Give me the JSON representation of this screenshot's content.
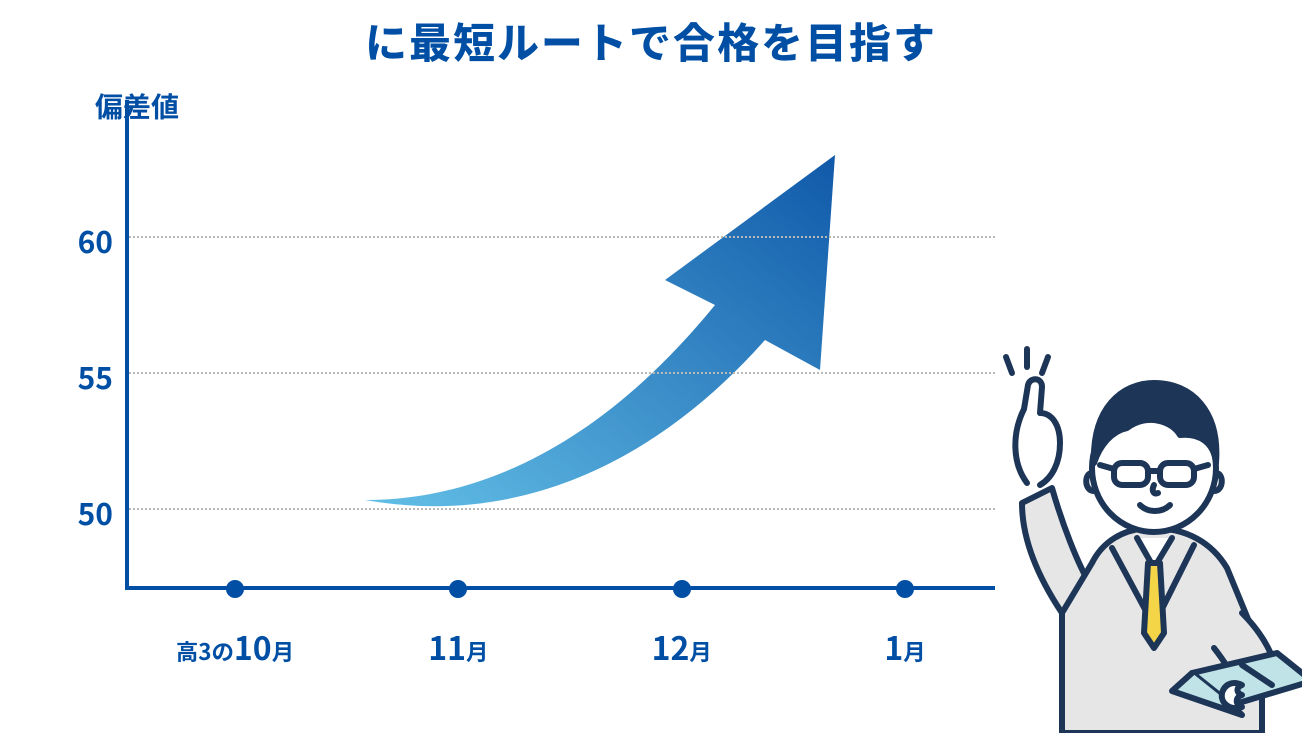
{
  "title": {
    "text": "に最短ルートで合格を目指す",
    "fontsize": 42,
    "color": "#004fa5"
  },
  "chart": {
    "type": "infographic",
    "y_label": "偏差値",
    "y_label_fontsize": 28,
    "y_ticks": [
      50,
      55,
      60
    ],
    "y_tick_fontsize": 30,
    "ylim": [
      47,
      65
    ],
    "gridline_color": "#b9b9b9",
    "axis_color": "#004fa5",
    "axis_width": 4,
    "x_ticks": [
      {
        "prefix": "高3の",
        "num": "10",
        "suffix": "月"
      },
      {
        "prefix": "",
        "num": "11",
        "suffix": "月"
      },
      {
        "prefix": "",
        "num": "12",
        "suffix": "月"
      },
      {
        "prefix": "",
        "num": "1",
        "suffix": "月"
      }
    ],
    "x_tick_fontsize": 32,
    "x_dot_radius": 9,
    "arrow": {
      "gradient_start": "#63bfe6",
      "gradient_end": "#1059a9"
    }
  },
  "illustration": {
    "stroke": "#1d3557",
    "suit": "#e6e6e6",
    "tie": "#f5d548",
    "hair": "#1d3557",
    "skin": "#ffffff",
    "book": "#bfe3e6"
  }
}
